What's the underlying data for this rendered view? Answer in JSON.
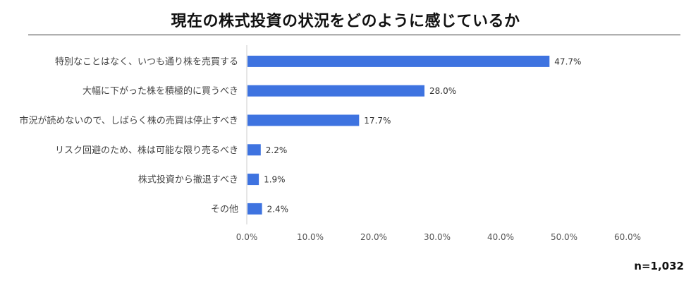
{
  "chart_data": {
    "type": "bar",
    "orientation": "horizontal",
    "title": "現在の株式投資の状況をどのように感じているか",
    "categories": [
      "特別なことはなく、いつも通り株を売買する",
      "大幅に下がった株を積極的に買うべき",
      "市況が読めないので、しばらく株の売買は停止すべき",
      "リスク回避のため、株は可能な限り売るべき",
      "株式投資から撤退すべき",
      "その他"
    ],
    "values": [
      47.7,
      28.0,
      17.7,
      2.2,
      1.9,
      2.4
    ],
    "value_labels": [
      "47.7%",
      "28.0%",
      "17.7%",
      "2.2%",
      "1.9%",
      "2.4%"
    ],
    "x_ticks": [
      0,
      10,
      20,
      30,
      40,
      50,
      60
    ],
    "x_tick_labels": [
      "0.0%",
      "10.0%",
      "20.0%",
      "30.0%",
      "40.0%",
      "50.0%",
      "60.0%"
    ],
    "xlim": [
      0,
      60
    ],
    "xlabel": "",
    "ylabel": "",
    "grid": false,
    "legend": "none",
    "bar_color": "#3e73e0",
    "sample_size": "n=1,032"
  }
}
